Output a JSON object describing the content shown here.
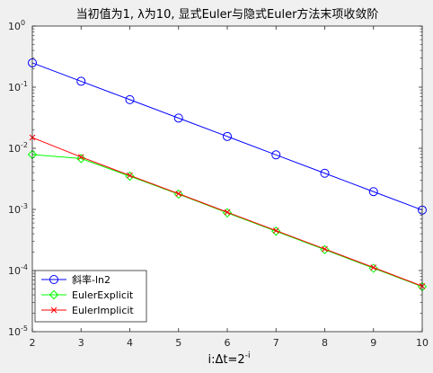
{
  "chart_data": {
    "type": "line",
    "title": "当初值为1, λ为10, 显式Euler与隐式Euler方法末项收敛阶",
    "xlabel_main": "i:Δt=2",
    "xlabel_sup": "-i",
    "ylabel": "",
    "x_scale": "linear",
    "y_scale": "log",
    "xlim": [
      2,
      10
    ],
    "ylim": [
      1e-05,
      1
    ],
    "x_ticks": [
      2,
      3,
      4,
      5,
      6,
      7,
      8,
      9,
      10
    ],
    "x_tick_labels": [
      "2",
      "3",
      "4",
      "5",
      "6",
      "7",
      "8",
      "9",
      "10"
    ],
    "y_ticks": [
      {
        "value": 1,
        "base": "10",
        "exp": "0"
      },
      {
        "value": 0.1,
        "base": "10",
        "exp": "-1"
      },
      {
        "value": 0.01,
        "base": "10",
        "exp": "-2"
      },
      {
        "value": 0.001,
        "base": "10",
        "exp": "-3"
      },
      {
        "value": 0.0001,
        "base": "10",
        "exp": "-4"
      },
      {
        "value": 1e-05,
        "base": "10",
        "exp": "-5"
      }
    ],
    "grid": false,
    "legend_position": "bottom-left",
    "series": [
      {
        "name": "斜率-ln2",
        "color": "#0000ff",
        "marker": "circle",
        "x": [
          2,
          3,
          4,
          5,
          6,
          7,
          8,
          9,
          10
        ],
        "values": [
          0.25,
          0.125,
          0.0625,
          0.03125,
          0.015625,
          0.0078125,
          0.00390625,
          0.001953125,
          0.0009765625
        ]
      },
      {
        "name": "EulerExplicit",
        "color": "#00ff00",
        "marker": "diamond",
        "x": [
          2,
          3,
          4,
          5,
          6,
          7,
          8,
          9,
          10
        ],
        "values": [
          0.0079,
          0.0068,
          0.0035,
          0.00178,
          0.00088,
          0.00044,
          0.00022,
          0.000109,
          5.45e-05
        ]
      },
      {
        "name": "EulerImplicit",
        "color": "#ff0000",
        "marker": "x",
        "x": [
          2,
          3,
          4,
          5,
          6,
          7,
          8,
          9,
          10
        ],
        "values": [
          0.015,
          0.0072,
          0.0036,
          0.00181,
          0.0009,
          0.00045,
          0.000225,
          0.000112,
          5.55e-05
        ]
      }
    ]
  }
}
